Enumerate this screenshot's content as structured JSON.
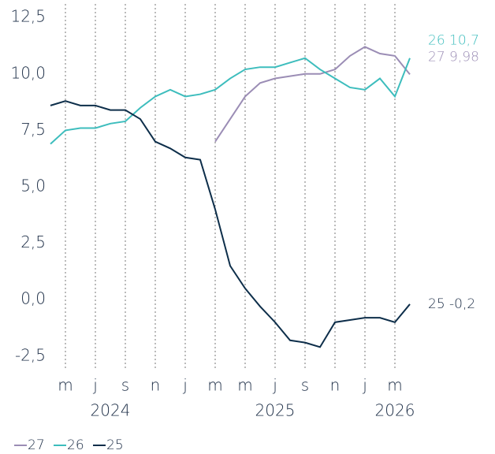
{
  "chart_data": {
    "type": "line",
    "x": [
      "2024-04",
      "2024-05",
      "2024-06",
      "2024-07",
      "2024-08",
      "2024-09",
      "2024-10",
      "2024-11",
      "2024-12",
      "2025-01",
      "2025-02",
      "2025-03",
      "2025-04",
      "2025-05",
      "2025-06",
      "2025-07",
      "2025-08",
      "2025-09",
      "2025-10",
      "2025-11",
      "2025-12",
      "2026-01",
      "2026-02",
      "2026-03",
      "2026-04"
    ],
    "series": [
      {
        "name": "27",
        "color": "#9b8db5",
        "end_label": "9,98",
        "values": [
          null,
          null,
          null,
          null,
          null,
          null,
          null,
          null,
          null,
          null,
          null,
          7.0,
          8.0,
          9.0,
          9.6,
          9.8,
          9.9,
          10.0,
          10.0,
          10.2,
          10.8,
          11.2,
          10.9,
          10.8,
          9.98
        ]
      },
      {
        "name": "26",
        "color": "#3dbdbd",
        "end_label": "10,7",
        "values": [
          6.9,
          7.5,
          7.6,
          7.6,
          7.8,
          7.9,
          8.5,
          9.0,
          9.3,
          9.0,
          9.1,
          9.3,
          9.8,
          10.2,
          10.3,
          10.3,
          10.5,
          10.7,
          10.2,
          9.8,
          9.4,
          9.3,
          9.8,
          9.0,
          10.7
        ]
      },
      {
        "name": "25",
        "color": "#0d2e4a",
        "end_label": "-0,2",
        "values": [
          8.6,
          8.8,
          8.6,
          8.6,
          8.4,
          8.4,
          8.0,
          7.0,
          6.7,
          6.3,
          6.2,
          4.0,
          1.5,
          0.5,
          -0.3,
          -1.0,
          -1.8,
          -1.9,
          -2.1,
          -1.0,
          -0.9,
          -0.8,
          -0.8,
          -1.0,
          -0.2
        ]
      }
    ],
    "ylim": [
      -3.1,
      13.1
    ],
    "yticks": [
      {
        "value": -2.5,
        "label": "-2,5"
      },
      {
        "value": 0,
        "label": "0,0"
      },
      {
        "value": 2.5,
        "label": "2,5"
      },
      {
        "value": 5,
        "label": "5,0"
      },
      {
        "value": 7.5,
        "label": "7,5"
      },
      {
        "value": 10,
        "label": "10,0"
      },
      {
        "value": 12.5,
        "label": "12,5"
      }
    ],
    "xticks": [
      {
        "value": "2024-05",
        "label": "m"
      },
      {
        "value": "2024-07",
        "label": "j"
      },
      {
        "value": "2024-09",
        "label": "s"
      },
      {
        "value": "2024-11",
        "label": "n"
      },
      {
        "value": "2025-01",
        "label": "j"
      },
      {
        "value": "2025-03",
        "label": "m"
      },
      {
        "value": "2025-05",
        "label": "m"
      },
      {
        "value": "2025-07",
        "label": "j"
      },
      {
        "value": "2025-09",
        "label": "s"
      },
      {
        "value": "2025-11",
        "label": "n"
      },
      {
        "value": "2026-01",
        "label": "j"
      },
      {
        "value": "2026-03",
        "label": "m"
      }
    ],
    "year_labels": [
      {
        "value": "2024-08",
        "label": "2024"
      },
      {
        "value": "2025-07",
        "label": "2025"
      },
      {
        "value": "2026-03",
        "label": "2026"
      }
    ],
    "grid": true
  }
}
